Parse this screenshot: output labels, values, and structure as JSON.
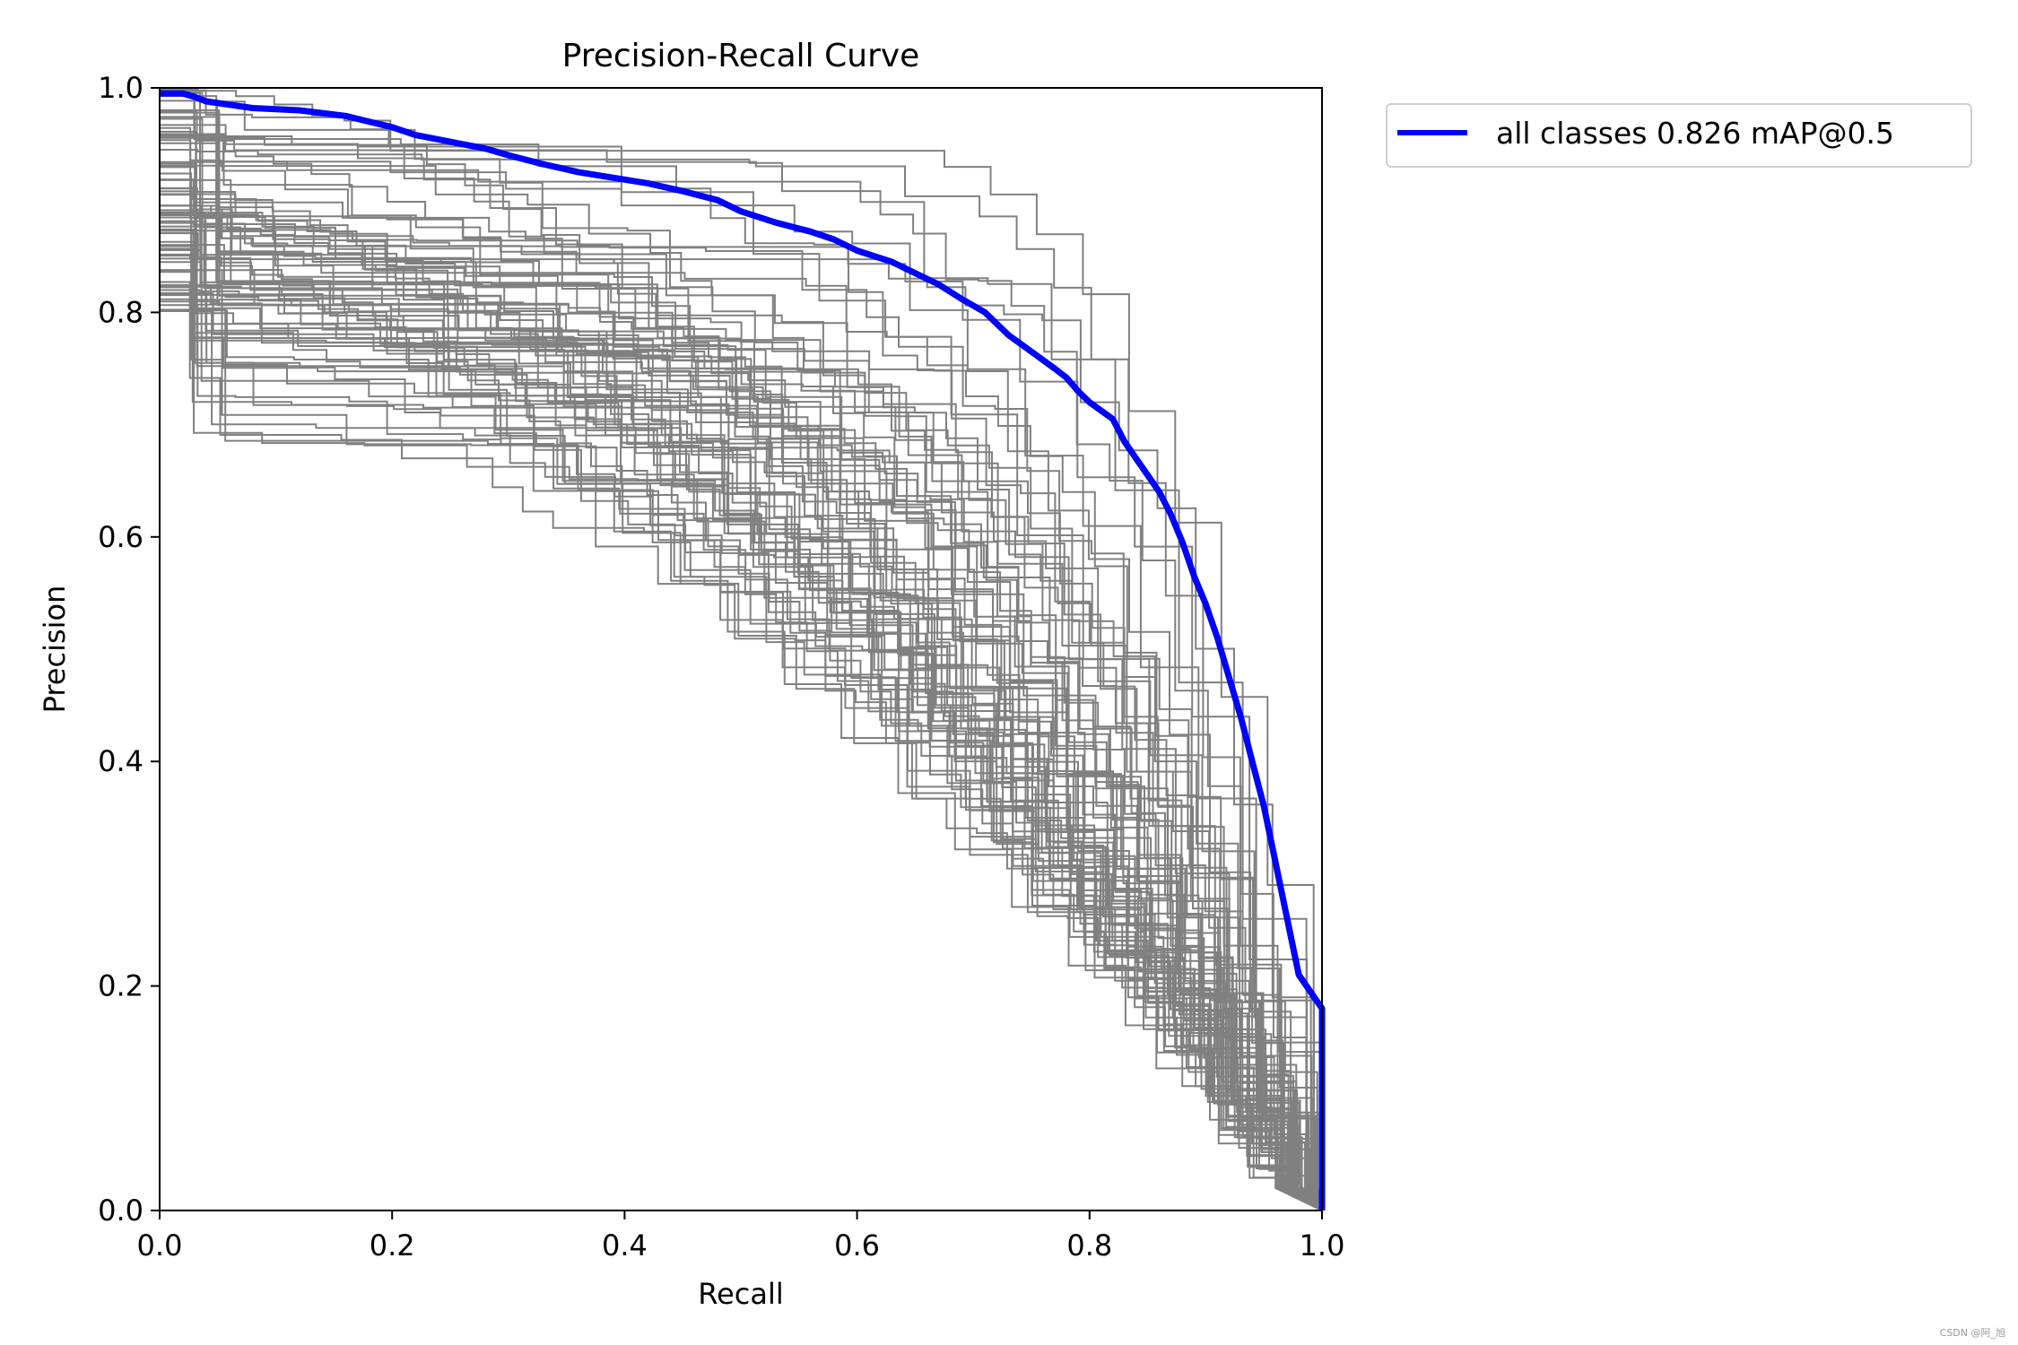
{
  "chart_data": {
    "type": "line",
    "title": "Precision-Recall Curve",
    "xlabel": "Recall",
    "ylabel": "Precision",
    "xlim": [
      0,
      1
    ],
    "ylim": [
      0,
      1
    ],
    "xticks": [
      "0.0",
      "0.2",
      "0.4",
      "0.6",
      "0.8",
      "1.0"
    ],
    "yticks": [
      "0.0",
      "0.2",
      "0.4",
      "0.6",
      "0.8",
      "1.0"
    ],
    "legend_position": "outside-top-right",
    "per_class_color": "#808080",
    "per_class_count": 80,
    "series": [
      {
        "name": "all classes 0.826 mAP@0.5",
        "color": "#0000ff",
        "x": [
          0.0,
          0.02,
          0.03,
          0.04,
          0.06,
          0.08,
          0.12,
          0.16,
          0.18,
          0.2,
          0.22,
          0.25,
          0.28,
          0.3,
          0.33,
          0.36,
          0.39,
          0.42,
          0.45,
          0.48,
          0.5,
          0.53,
          0.56,
          0.58,
          0.6,
          0.63,
          0.65,
          0.67,
          0.69,
          0.71,
          0.73,
          0.75,
          0.77,
          0.78,
          0.79,
          0.8,
          0.82,
          0.83,
          0.84,
          0.85,
          0.86,
          0.87,
          0.88,
          0.89,
          0.9,
          0.91,
          0.92,
          0.93,
          0.94,
          0.95,
          0.96,
          0.97,
          0.98,
          0.99,
          1.0,
          1.0
        ],
        "y": [
          0.995,
          0.995,
          0.992,
          0.988,
          0.985,
          0.982,
          0.98,
          0.975,
          0.97,
          0.965,
          0.958,
          0.952,
          0.946,
          0.94,
          0.932,
          0.925,
          0.92,
          0.915,
          0.908,
          0.9,
          0.89,
          0.88,
          0.872,
          0.865,
          0.855,
          0.845,
          0.835,
          0.825,
          0.812,
          0.8,
          0.78,
          0.765,
          0.75,
          0.742,
          0.73,
          0.72,
          0.705,
          0.685,
          0.67,
          0.655,
          0.64,
          0.62,
          0.595,
          0.565,
          0.54,
          0.51,
          0.475,
          0.44,
          0.4,
          0.36,
          0.31,
          0.26,
          0.21,
          0.195,
          0.18,
          0.0
        ]
      }
    ]
  },
  "watermark": "CSDN @阿_旭"
}
